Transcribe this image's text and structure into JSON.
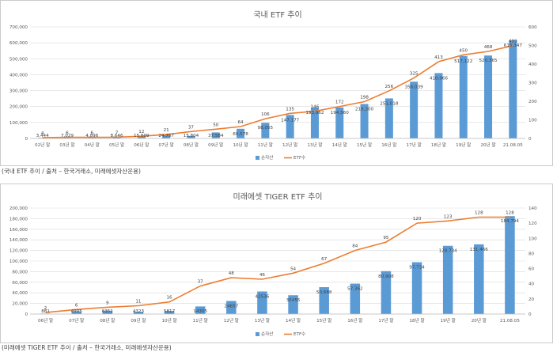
{
  "colors": {
    "bar": "#5b9bd5",
    "line": "#ed7d31",
    "grid": "#d9d9d9",
    "border": "#bfbfbf"
  },
  "chart_data": [
    {
      "type": "bar",
      "title": "국내 ETF 추이",
      "categories": [
        "02년 말",
        "03년 말",
        "04년 말",
        "05년 말",
        "06년 말",
        "07년 말",
        "08년 말",
        "09년 말",
        "10년 말",
        "11년 말",
        "12년 말",
        "13년 말",
        "14년 말",
        "15년 말",
        "16년 말",
        "17년 말",
        "18년 말",
        "19년 말",
        "20년 말",
        "21.08.05"
      ],
      "series": [
        {
          "name": "순자산",
          "kind": "bar",
          "axis": "left",
          "values": [
            3444,
            7029,
            4896,
            8646,
            15609,
            24757,
            15804,
            37584,
            60578,
            98055,
            147177,
            193962,
            194560,
            216300,
            251018,
            356039,
            410066,
            517122,
            520365,
            615347
          ],
          "labels": [
            "3,444",
            "7,029",
            "4,896",
            "8,646",
            "15,609",
            "24,757",
            "15,804",
            "37,584",
            "60,578",
            "98,055",
            "147,177",
            "193,962",
            "194,560",
            "216,300",
            "251,018",
            "356,039",
            "410,066",
            "517,122",
            "520,365",
            "615,347"
          ]
        },
        {
          "name": "ETF수",
          "kind": "line",
          "axis": "right",
          "values": [
            4,
            6,
            6,
            7,
            12,
            21,
            37,
            50,
            64,
            106,
            135,
            146,
            172,
            198,
            256,
            325,
            413,
            450,
            468,
            499
          ],
          "labels": [
            "4",
            "6",
            "6",
            "7",
            "12",
            "21",
            "37",
            "50",
            "64",
            "106",
            "135",
            "146",
            "172",
            "198",
            "256",
            "325",
            "413",
            "450",
            "468",
            "499"
          ]
        }
      ],
      "ylim_left": [
        0,
        700000
      ],
      "yticks_left": [
        "0",
        "100,000",
        "200,000",
        "300,000",
        "400,000",
        "500,000",
        "600,000",
        "700,000"
      ],
      "ylim_right": [
        0,
        600
      ],
      "yticks_right": [
        "0",
        "100",
        "200",
        "300",
        "400",
        "500",
        "600"
      ],
      "legend": "bottom",
      "grid": true
    },
    {
      "type": "bar",
      "title": "미래에셋 TIGER ETF 추이",
      "categories": [
        "06년 말",
        "07년 말",
        "08년 말",
        "09년 말",
        "10년 말",
        "11년 말",
        "12년 말",
        "13년 말",
        "14년 말",
        "15년 말",
        "16년 말",
        "17년 말",
        "18년 말",
        "19년 말",
        "20년 말",
        "21.08.05"
      ],
      "series": [
        {
          "name": "순자산",
          "kind": "bar",
          "axis": "left",
          "values": [
            881,
            4995,
            6351,
            4323,
            5817,
            14305,
            24657,
            42536,
            35455,
            50688,
            57362,
            80908,
            97734,
            128734,
            131466,
            184794
          ],
          "labels": [
            "881",
            "4995",
            "6351",
            "4323",
            "5817",
            "14305",
            "24657",
            "42536",
            "35455",
            "50,688",
            "57,362",
            "80,908",
            "97,734",
            "128,734",
            "131,466",
            "184,794"
          ]
        },
        {
          "name": "ETF수",
          "kind": "line",
          "axis": "right",
          "values": [
            2,
            6,
            9,
            11,
            16,
            37,
            48,
            46,
            54,
            67,
            84,
            95,
            120,
            123,
            128,
            128
          ],
          "labels": [
            "2",
            "6",
            "9",
            "11",
            "16",
            "37",
            "48",
            "46",
            "54",
            "67",
            "84",
            "95",
            "120",
            "123",
            "128",
            "128"
          ]
        }
      ],
      "ylim_left": [
        0,
        200000
      ],
      "yticks_left": [
        "0",
        "20,000",
        "40,000",
        "60,000",
        "80,000",
        "100,000",
        "120,000",
        "140,000",
        "160,000",
        "180,000",
        "200,000"
      ],
      "ylim_right": [
        0,
        140
      ],
      "yticks_right": [
        "0",
        "20",
        "40",
        "60",
        "80",
        "100",
        "120",
        "140"
      ],
      "legend": "bottom",
      "grid": true
    }
  ],
  "captions": [
    "(국내 ETF 추이 / 출처 – 한국거래소, 미래에셋자산운용)",
    "(미래에셋 TIGER ETF 추이 / 출처 – 한국거래소, 미래에셋자산운용)"
  ]
}
